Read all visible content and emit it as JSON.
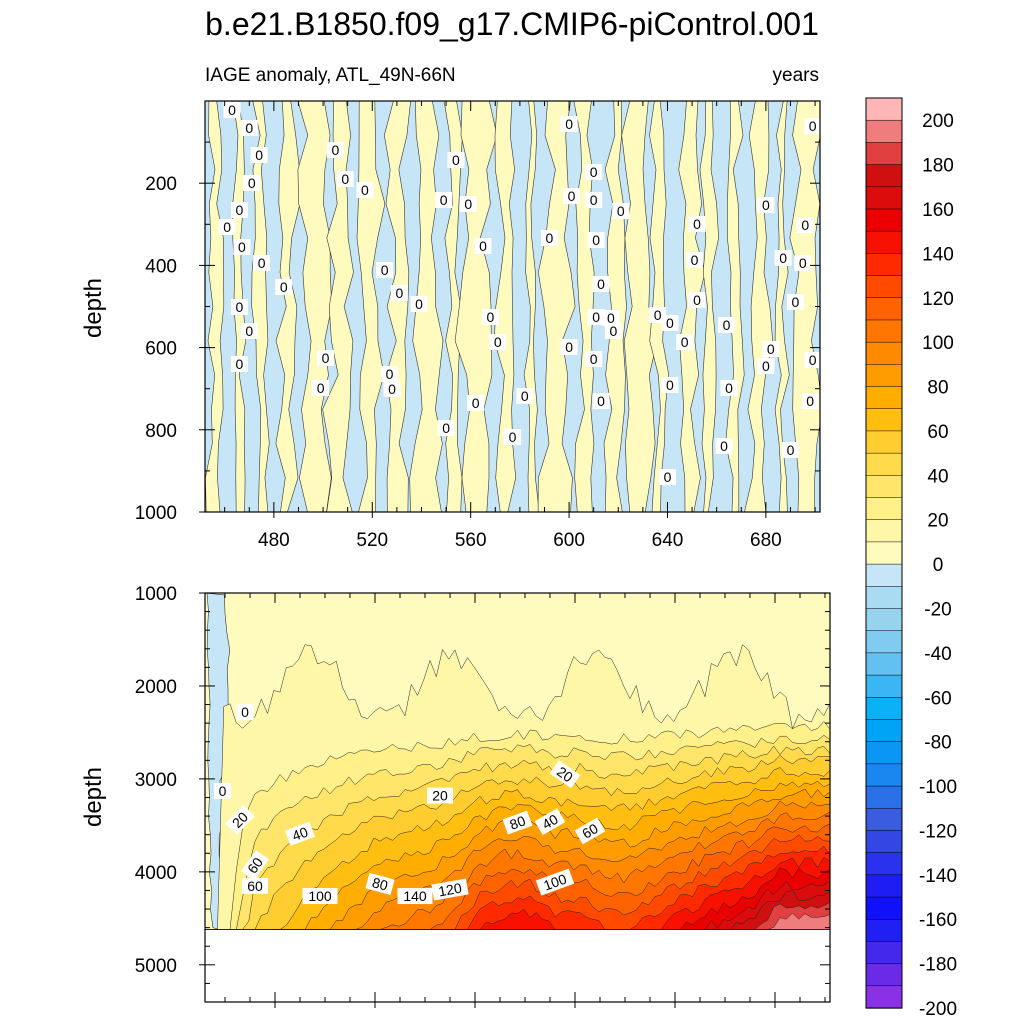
{
  "chart_data": {
    "type": "heatmap",
    "title": "b.e21.B1850.f09_g17.CMIP6-piControl.001",
    "subtitle_left": "IAGE anomaly, ATL_49N-66N",
    "subtitle_right": "years",
    "x_range": [
      452,
      702
    ],
    "x_ticks": [
      "480",
      "520",
      "560",
      "600",
      "640",
      "680"
    ],
    "top_panel": {
      "ylabel": "depth",
      "ylim": [
        0,
        1000
      ],
      "y_ticks": [
        "200",
        "400",
        "600",
        "800",
        "1000"
      ],
      "contour_labels": [
        "0",
        "0",
        "0",
        "0",
        "0",
        "0",
        "0",
        "0",
        "0",
        "0",
        "0",
        "0",
        "0",
        "0",
        "0",
        "0",
        "0",
        "0",
        "0",
        "0",
        "0",
        "0",
        "0",
        "0",
        "0",
        "0",
        "0",
        "0",
        "0",
        "0",
        "0",
        "0",
        "0",
        "0",
        "0",
        "0",
        "0",
        "0",
        "0",
        "0",
        "0",
        "0",
        "0",
        "0",
        "0",
        "0",
        "0",
        "0",
        "0",
        "0",
        "0",
        "0",
        "0",
        "0",
        "0",
        "0",
        "0",
        "0",
        "0",
        "0",
        "0",
        "0",
        "0",
        "0",
        "0",
        "0",
        "0",
        "0"
      ]
    },
    "bottom_panel": {
      "ylabel": "depth",
      "ylim": [
        1000,
        5400
      ],
      "y_ticks": [
        "1000",
        "2000",
        "3000",
        "4000",
        "5000"
      ],
      "contour_labels": [
        "0",
        "0",
        "20",
        "60",
        "40",
        "60",
        "100",
        "80",
        "140",
        "120",
        "100",
        "80",
        "40",
        "60",
        "20",
        "20"
      ],
      "bottom_value_profile_years": [
        452,
        462,
        472,
        482,
        492,
        502,
        512,
        522,
        532,
        542,
        552,
        562,
        572,
        582,
        592,
        602,
        612,
        622,
        632,
        642,
        652,
        662,
        672,
        682,
        692,
        702
      ],
      "bottom_value_profile": [
        0,
        20,
        50,
        60,
        70,
        80,
        90,
        100,
        105,
        110,
        120,
        140,
        150,
        150,
        140,
        140,
        130,
        130,
        140,
        150,
        160,
        170,
        180,
        200,
        200,
        200
      ]
    },
    "colorbar": {
      "labels": [
        "200",
        "180",
        "160",
        "140",
        "120",
        "100",
        "80",
        "60",
        "40",
        "20",
        "0",
        "-20",
        "-40",
        "-60",
        "-80",
        "-100",
        "-120",
        "-140",
        "-160",
        "-180",
        "-200"
      ],
      "colors": [
        "#ffb6b6",
        "#f07d7d",
        "#e04040",
        "#d01010",
        "#dc0c0c",
        "#ea0000",
        "#f81000",
        "#ff2a00",
        "#ff4a00",
        "#ff6200",
        "#ff7600",
        "#ff8a00",
        "#ff9c00",
        "#ffae00",
        "#ffbe10",
        "#ffcd30",
        "#ffdb4c",
        "#ffe66a",
        "#fff08a",
        "#fff7a8",
        "#fffbbe",
        "#c6e5f6",
        "#a9dbf2",
        "#97d3ef",
        "#80cbef",
        "#63c1f2",
        "#3bb6f4",
        "#0cb0f6",
        "#00a4f6",
        "#0a96f4",
        "#1a86f0",
        "#2a70e8",
        "#3a5ce0",
        "#3446e4",
        "#2a32ee",
        "#1e1ef4",
        "#1010fa",
        "#2020f4",
        "#4428ec",
        "#6a2ae8",
        "#8a30e6"
      ]
    }
  }
}
